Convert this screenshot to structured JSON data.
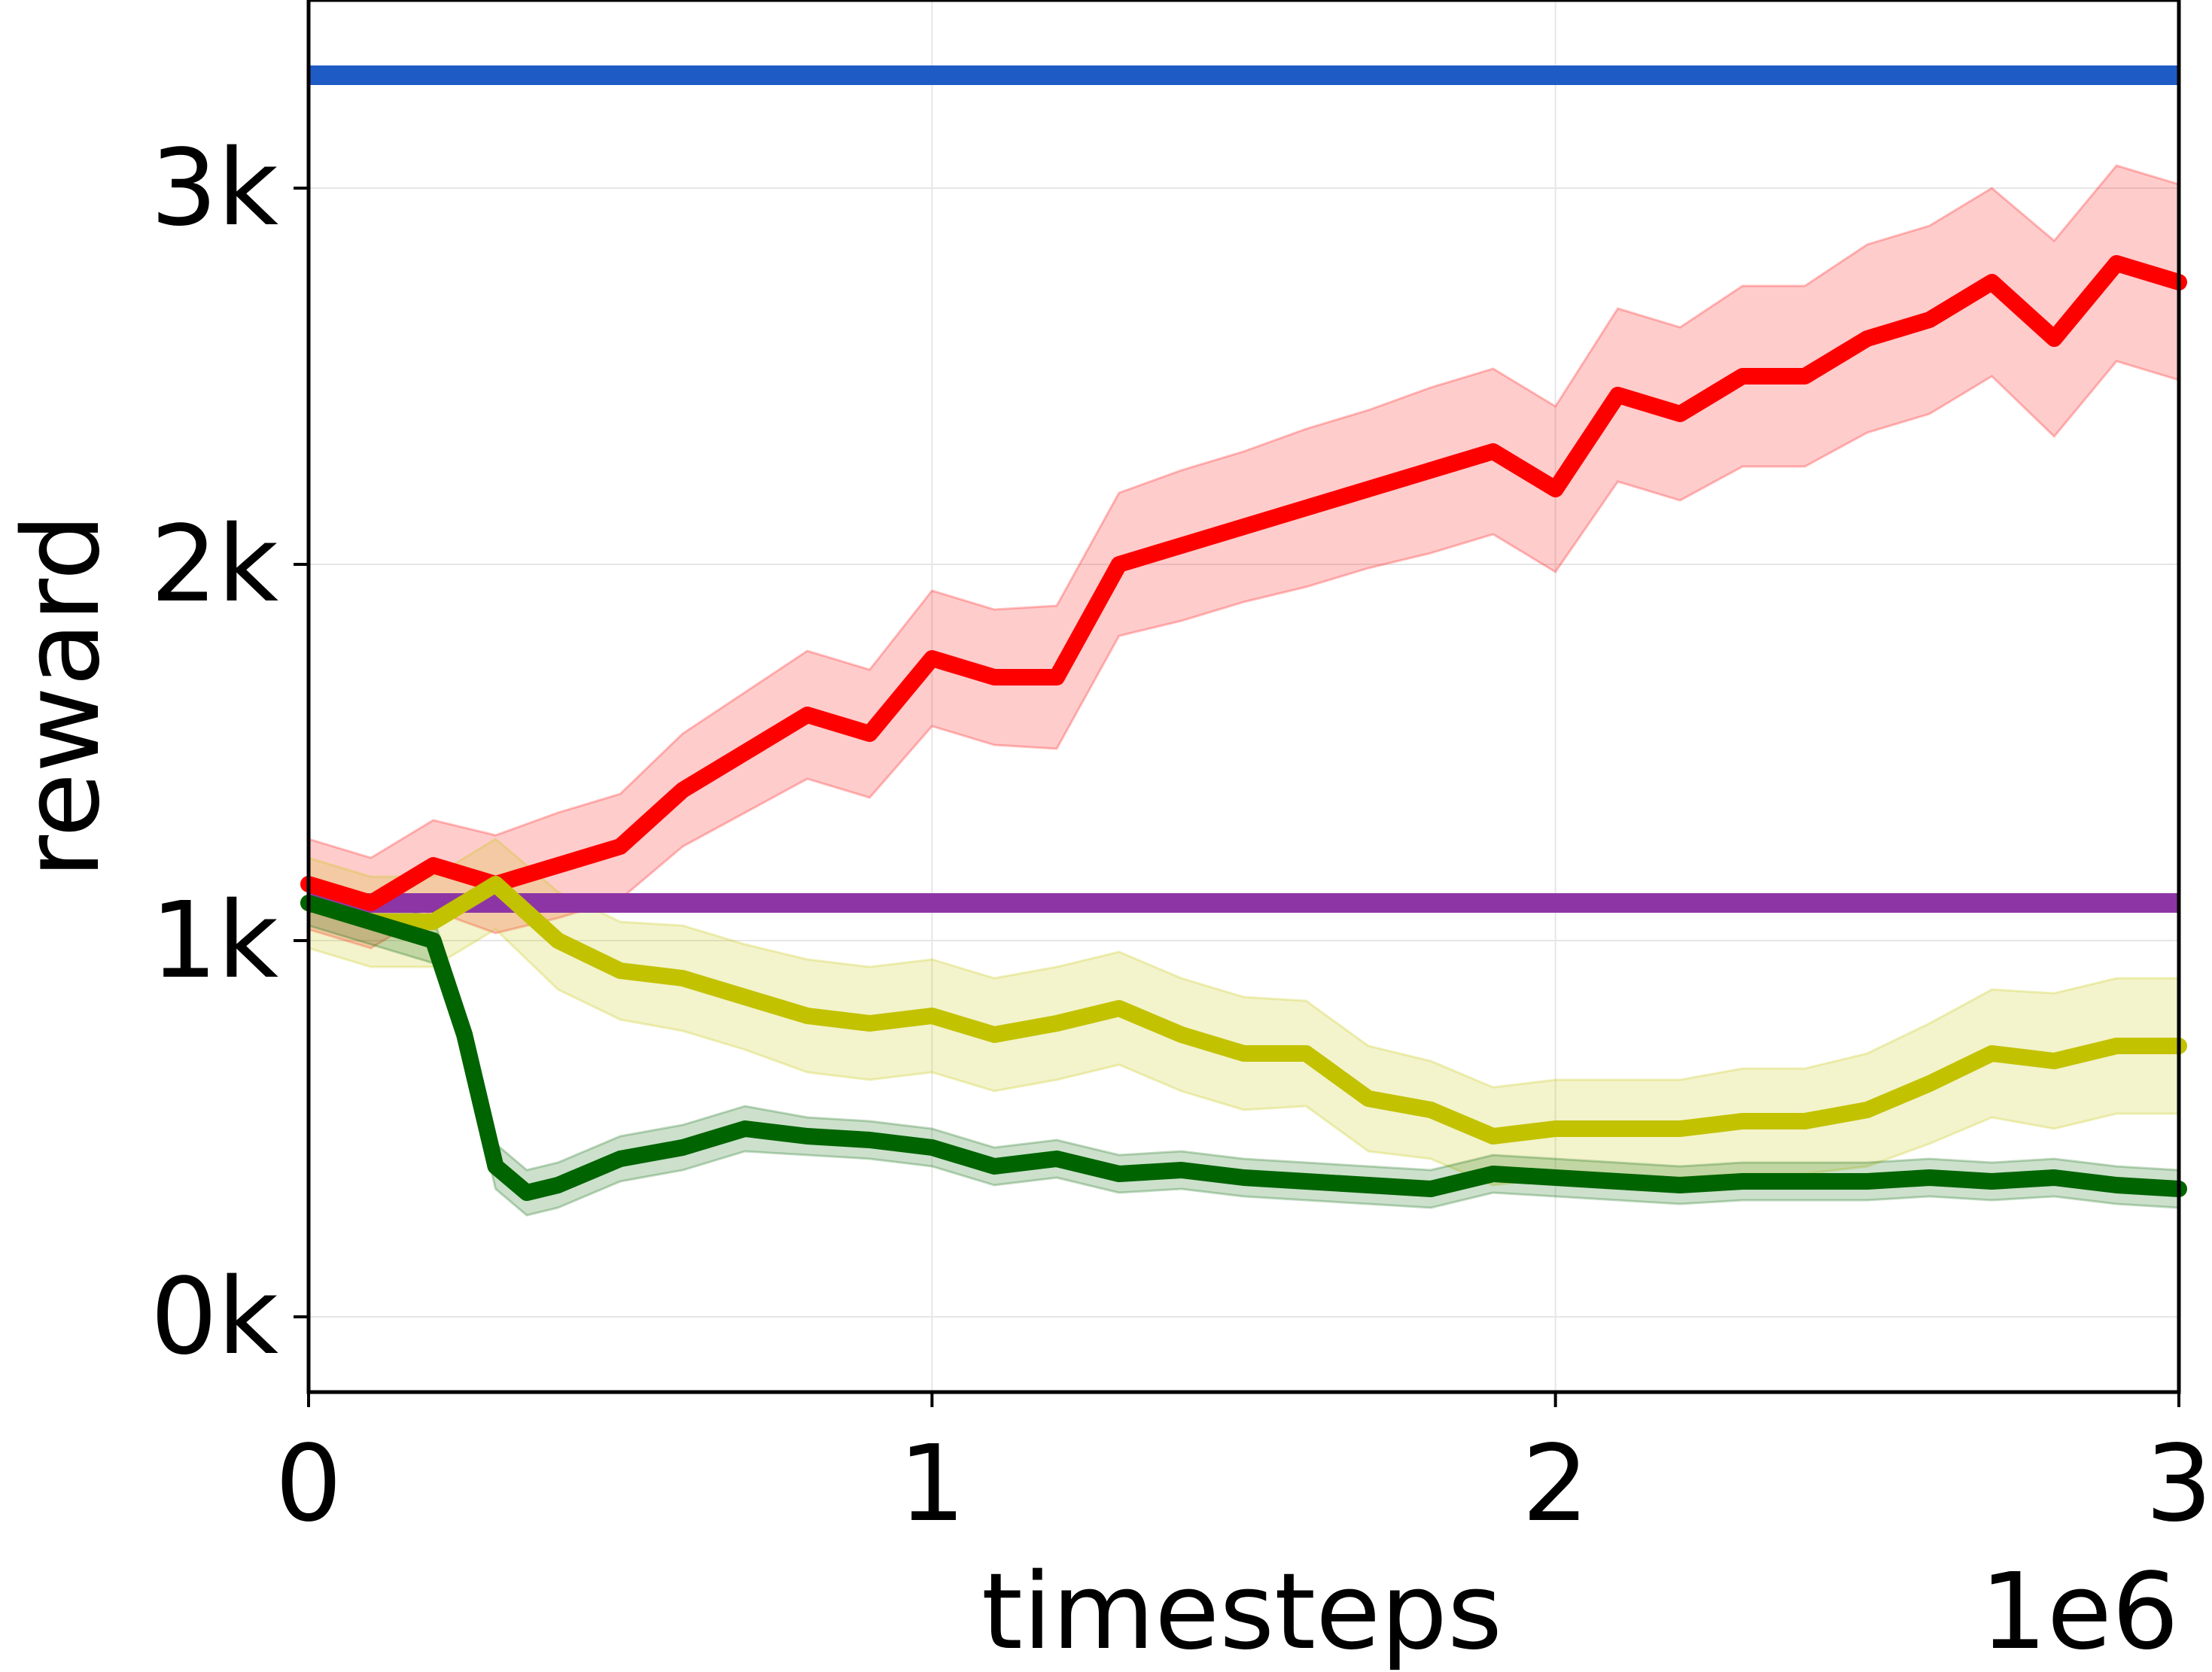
{
  "chart_data": {
    "type": "line",
    "xlabel": "timesteps",
    "ylabel": "reward",
    "x_offset_label": "1e6",
    "xlim": [
      0,
      3
    ],
    "ylim": [
      -0.2,
      3.5
    ],
    "x_ticks": [
      0,
      1,
      2,
      3
    ],
    "x_tick_labels": [
      "0",
      "1",
      "2",
      "3"
    ],
    "y_ticks": [
      0,
      1,
      2,
      3
    ],
    "y_tick_labels": [
      "0k",
      "1k",
      "2k",
      "3k"
    ],
    "grid": true,
    "legend": "none",
    "hlines": [
      {
        "value": 3.3,
        "color": "#1f5bc4"
      },
      {
        "value": 1.1,
        "color": "#8e35a6"
      }
    ],
    "series": [
      {
        "color": "#ff0000",
        "x": [
          0.0,
          0.1,
          0.2,
          0.3,
          0.4,
          0.5,
          0.6,
          0.7,
          0.8,
          0.9,
          1.0,
          1.1,
          1.2,
          1.3,
          1.4,
          1.5,
          1.6,
          1.7,
          1.8,
          1.9,
          2.0,
          2.1,
          2.2,
          2.3,
          2.4,
          2.5,
          2.6,
          2.7,
          2.8,
          2.9,
          3.0
        ],
        "values": [
          1.15,
          1.1,
          1.2,
          1.15,
          1.2,
          1.25,
          1.4,
          1.5,
          1.6,
          1.55,
          1.75,
          1.7,
          1.7,
          2.0,
          2.05,
          2.1,
          2.15,
          2.2,
          2.25,
          2.3,
          2.2,
          2.45,
          2.4,
          2.5,
          2.5,
          2.6,
          2.65,
          2.75,
          2.6,
          2.8,
          2.75
        ],
        "band": [
          0.12,
          0.12,
          0.12,
          0.13,
          0.14,
          0.14,
          0.15,
          0.16,
          0.17,
          0.17,
          0.18,
          0.18,
          0.19,
          0.19,
          0.2,
          0.2,
          0.21,
          0.21,
          0.22,
          0.22,
          0.22,
          0.23,
          0.23,
          0.24,
          0.24,
          0.25,
          0.25,
          0.25,
          0.26,
          0.26,
          0.26
        ]
      },
      {
        "color": "#c2c200",
        "x": [
          0.0,
          0.1,
          0.2,
          0.3,
          0.4,
          0.5,
          0.6,
          0.7,
          0.8,
          0.9,
          1.0,
          1.1,
          1.2,
          1.3,
          1.4,
          1.5,
          1.6,
          1.7,
          1.8,
          1.9,
          2.0,
          2.1,
          2.2,
          2.3,
          2.4,
          2.5,
          2.6,
          2.7,
          2.8,
          2.9,
          3.0
        ],
        "values": [
          1.1,
          1.05,
          1.05,
          1.15,
          1.0,
          0.92,
          0.9,
          0.85,
          0.8,
          0.78,
          0.8,
          0.75,
          0.78,
          0.82,
          0.75,
          0.7,
          0.7,
          0.58,
          0.55,
          0.48,
          0.5,
          0.5,
          0.5,
          0.52,
          0.52,
          0.55,
          0.62,
          0.7,
          0.68,
          0.72,
          0.72
        ],
        "band": [
          0.12,
          0.12,
          0.12,
          0.12,
          0.13,
          0.13,
          0.14,
          0.14,
          0.15,
          0.15,
          0.15,
          0.15,
          0.15,
          0.15,
          0.15,
          0.15,
          0.14,
          0.14,
          0.13,
          0.13,
          0.13,
          0.13,
          0.13,
          0.14,
          0.14,
          0.15,
          0.16,
          0.17,
          0.18,
          0.18,
          0.18
        ]
      },
      {
        "color": "#006400",
        "x": [
          0.0,
          0.1,
          0.2,
          0.25,
          0.3,
          0.35,
          0.4,
          0.5,
          0.6,
          0.7,
          0.8,
          0.9,
          1.0,
          1.1,
          1.2,
          1.3,
          1.4,
          1.5,
          1.6,
          1.7,
          1.8,
          1.9,
          2.0,
          2.1,
          2.2,
          2.3,
          2.4,
          2.5,
          2.6,
          2.7,
          2.8,
          2.9,
          3.0
        ],
        "values": [
          1.1,
          1.05,
          1.0,
          0.75,
          0.4,
          0.33,
          0.35,
          0.42,
          0.45,
          0.5,
          0.48,
          0.47,
          0.45,
          0.4,
          0.42,
          0.38,
          0.39,
          0.37,
          0.36,
          0.35,
          0.34,
          0.38,
          0.37,
          0.36,
          0.35,
          0.36,
          0.36,
          0.36,
          0.37,
          0.36,
          0.37,
          0.35,
          0.34
        ],
        "band": [
          0.06,
          0.06,
          0.06,
          0.06,
          0.06,
          0.06,
          0.06,
          0.06,
          0.06,
          0.06,
          0.05,
          0.05,
          0.05,
          0.05,
          0.05,
          0.05,
          0.05,
          0.05,
          0.05,
          0.05,
          0.05,
          0.05,
          0.05,
          0.05,
          0.05,
          0.05,
          0.05,
          0.05,
          0.05,
          0.05,
          0.05,
          0.05,
          0.05
        ]
      }
    ]
  }
}
